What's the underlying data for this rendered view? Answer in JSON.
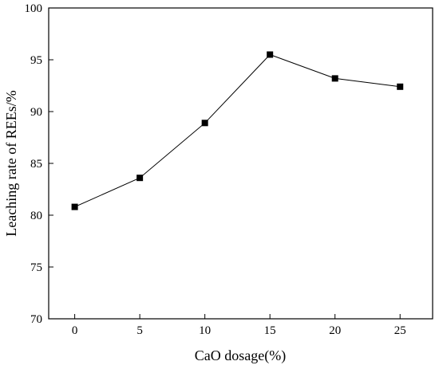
{
  "chart_data": {
    "type": "line",
    "title": "",
    "xlabel": "CaO dosage(%)",
    "ylabel": "Leaching rate of REEs/%",
    "x_ticks": [
      "0",
      "5",
      "10",
      "15",
      "20",
      "25"
    ],
    "y_ticks": [
      "70",
      "75",
      "80",
      "85",
      "90",
      "95",
      "100"
    ],
    "xlim": [
      -2,
      27.5
    ],
    "ylim": [
      70,
      100
    ],
    "grid": false,
    "legend": "none",
    "series": [
      {
        "x": [
          0,
          5,
          10,
          15,
          20,
          25
        ],
        "values": [
          80.8,
          83.6,
          88.9,
          95.5,
          93.2,
          92.4
        ],
        "color": "#000000",
        "marker": "square"
      }
    ]
  }
}
